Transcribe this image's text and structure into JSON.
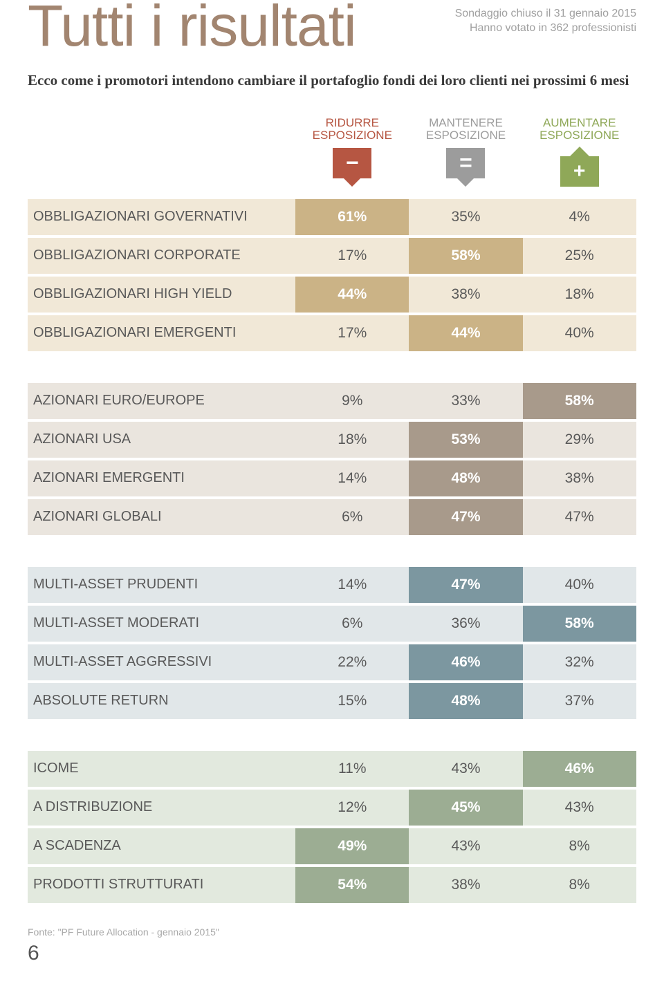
{
  "header": {
    "title": "Tutti i risultati",
    "survey_line1": "Sondaggio chiuso il 31 gennaio 2015",
    "survey_line2": "Hanno votato in 362 professionisti"
  },
  "subtitle": "Ecco come i promotori intendono cambiare il portafoglio fondi dei loro clienti nei prossimi 6 mesi",
  "columns": {
    "reduce": {
      "line1": "RIDURRE",
      "line2": "ESPOSIZIONE",
      "color": "#b65642",
      "symbol": "−"
    },
    "maintain": {
      "line1": "MANTENERE",
      "line2": "ESPOSIZIONE",
      "color": "#9c9c9c",
      "symbol": "="
    },
    "increase": {
      "line1": "AUMENTARE",
      "line2": "ESPOSIZIONE",
      "color": "#8fa858",
      "symbol": "+"
    }
  },
  "blocks": [
    {
      "row_bg": "#f1e8d7",
      "highlight_bg": "#cbb386",
      "rows": [
        {
          "label": "OBBLIGAZIONARI GOVERNATIVI",
          "values": [
            "61%",
            "35%",
            "4%"
          ],
          "hl_index": 0
        },
        {
          "label": "OBBLIGAZIONARI CORPORATE",
          "values": [
            "17%",
            "58%",
            "25%"
          ],
          "hl_index": 1
        },
        {
          "label": "OBBLIGAZIONARI HIGH YIELD",
          "values": [
            "44%",
            "38%",
            "18%"
          ],
          "hl_index": 0
        },
        {
          "label": "OBBLIGAZIONARI EMERGENTI",
          "values": [
            "17%",
            "44%",
            "40%"
          ],
          "hl_index": 1
        }
      ]
    },
    {
      "row_bg": "#eae5de",
      "highlight_bg": "#a89a8b",
      "rows": [
        {
          "label": "AZIONARI EURO/EUROPE",
          "values": [
            "9%",
            "33%",
            "58%"
          ],
          "hl_index": 2
        },
        {
          "label": "AZIONARI USA",
          "values": [
            "18%",
            "53%",
            "29%"
          ],
          "hl_index": 1
        },
        {
          "label": "AZIONARI EMERGENTI",
          "values": [
            "14%",
            "48%",
            "38%"
          ],
          "hl_index": 1
        },
        {
          "label": "AZIONARI GLOBALI",
          "values": [
            "6%",
            "47%",
            "47%"
          ],
          "hl_index": 1
        }
      ]
    },
    {
      "row_bg": "#e1e7e9",
      "highlight_bg": "#7c97a0",
      "rows": [
        {
          "label": "MULTI-ASSET PRUDENTI",
          "values": [
            "14%",
            "47%",
            "40%"
          ],
          "hl_index": 1
        },
        {
          "label": "MULTI-ASSET MODERATI",
          "values": [
            "6%",
            "36%",
            "58%"
          ],
          "hl_index": 2
        },
        {
          "label": "MULTI-ASSET AGGRESSIVI",
          "values": [
            "22%",
            "46%",
            "32%"
          ],
          "hl_index": 1
        },
        {
          "label": "ABSOLUTE RETURN",
          "values": [
            "15%",
            "48%",
            "37%"
          ],
          "hl_index": 1
        }
      ]
    },
    {
      "row_bg": "#e2e9de",
      "highlight_bg": "#9cad93",
      "rows": [
        {
          "label": "ICOME",
          "values": [
            "11%",
            "43%",
            "46%"
          ],
          "hl_index": 2
        },
        {
          "label": "A DISTRIBUZIONE",
          "values": [
            "12%",
            "45%",
            "43%"
          ],
          "hl_index": 1
        },
        {
          "label": "A SCADENZA",
          "values": [
            "49%",
            "43%",
            "8%"
          ],
          "hl_index": 0
        },
        {
          "label": "PRODOTTI STRUTTURATI",
          "values": [
            "54%",
            "38%",
            "8%"
          ],
          "hl_index": 0
        }
      ]
    }
  ],
  "source": "Fonte: \"PF Future Allocation - gennaio 2015\"",
  "page_number": "6"
}
